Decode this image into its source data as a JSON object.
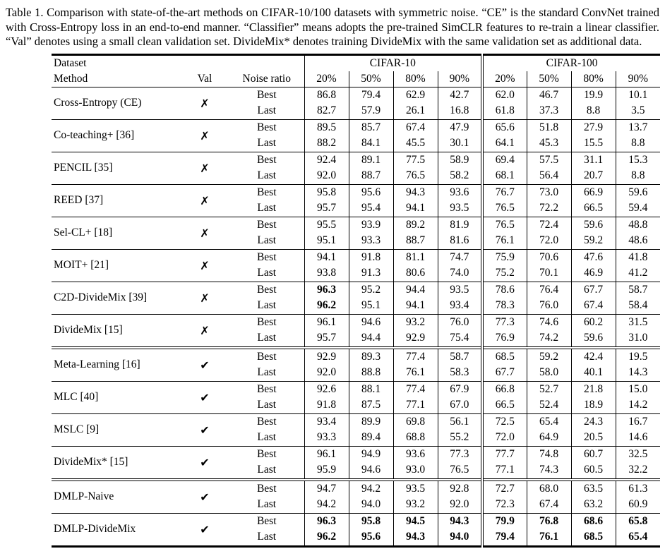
{
  "caption": "Table 1. Comparison with state-of-the-art methods on CIFAR-10/100 datasets with symmetric noise. “CE” is the standard ConvNet trained with Cross-Entropy loss in an end-to-end manner. “Classifier” means adopts the pre-trained SimCLR features to re-train a linear classifier. “Val” denotes using a small clean validation set. DivideMix* denotes training DivideMix with the same validation set as additional data.",
  "icons": {
    "check": "✔",
    "cross": "✗"
  },
  "table": {
    "header": {
      "dataset_label": "Dataset",
      "method_label": "Method",
      "val_label": "Val",
      "noise_ratio_label": "Noise ratio",
      "group1": "CIFAR-10",
      "group2": "CIFAR-100",
      "noise_levels": [
        "20%",
        "50%",
        "80%",
        "90%"
      ]
    },
    "row_labels": {
      "best": "Best",
      "last": "Last"
    },
    "rows": [
      {
        "method": "Cross-Entropy (CE)",
        "val": false,
        "section_start": false,
        "best": [
          "86.8",
          "79.4",
          "62.9",
          "42.7",
          "62.0",
          "46.7",
          "19.9",
          "10.1"
        ],
        "last": [
          "82.7",
          "57.9",
          "26.1",
          "16.8",
          "61.8",
          "37.3",
          "8.8",
          "3.5"
        ],
        "bold_best": [],
        "bold_last": []
      },
      {
        "method": "Co-teaching+ [36]",
        "val": false,
        "section_start": false,
        "best": [
          "89.5",
          "85.7",
          "67.4",
          "47.9",
          "65.6",
          "51.8",
          "27.9",
          "13.7"
        ],
        "last": [
          "88.2",
          "84.1",
          "45.5",
          "30.1",
          "64.1",
          "45.3",
          "15.5",
          "8.8"
        ],
        "bold_best": [],
        "bold_last": []
      },
      {
        "method": "PENCIL [35]",
        "val": false,
        "section_start": false,
        "best": [
          "92.4",
          "89.1",
          "77.5",
          "58.9",
          "69.4",
          "57.5",
          "31.1",
          "15.3"
        ],
        "last": [
          "92.0",
          "88.7",
          "76.5",
          "58.2",
          "68.1",
          "56.4",
          "20.7",
          "8.8"
        ],
        "bold_best": [],
        "bold_last": []
      },
      {
        "method": "REED [37]",
        "val": false,
        "section_start": false,
        "best": [
          "95.8",
          "95.6",
          "94.3",
          "93.6",
          "76.7",
          "73.0",
          "66.9",
          "59.6"
        ],
        "last": [
          "95.7",
          "95.4",
          "94.1",
          "93.5",
          "76.5",
          "72.2",
          "66.5",
          "59.4"
        ],
        "bold_best": [],
        "bold_last": []
      },
      {
        "method": "Sel-CL+ [18]",
        "val": false,
        "section_start": false,
        "best": [
          "95.5",
          "93.9",
          "89.2",
          "81.9",
          "76.5",
          "72.4",
          "59.6",
          "48.8"
        ],
        "last": [
          "95.1",
          "93.3",
          "88.7",
          "81.6",
          "76.1",
          "72.0",
          "59.2",
          "48.6"
        ],
        "bold_best": [],
        "bold_last": []
      },
      {
        "method": "MOIT+ [21]",
        "val": false,
        "section_start": false,
        "best": [
          "94.1",
          "91.8",
          "81.1",
          "74.7",
          "75.9",
          "70.6",
          "47.6",
          "41.8"
        ],
        "last": [
          "93.8",
          "91.3",
          "80.6",
          "74.0",
          "75.2",
          "70.1",
          "46.9",
          "41.2"
        ],
        "bold_best": [],
        "bold_last": []
      },
      {
        "method": "C2D-DivideMix [39]",
        "val": false,
        "section_start": false,
        "best": [
          "96.3",
          "95.2",
          "94.4",
          "93.5",
          "78.6",
          "76.4",
          "67.7",
          "58.7"
        ],
        "last": [
          "96.2",
          "95.1",
          "94.1",
          "93.4",
          "78.3",
          "76.0",
          "67.4",
          "58.4"
        ],
        "bold_best": [
          0
        ],
        "bold_last": [
          0
        ]
      },
      {
        "method": "DivideMix [15]",
        "val": false,
        "section_start": false,
        "best": [
          "96.1",
          "94.6",
          "93.2",
          "76.0",
          "77.3",
          "74.6",
          "60.2",
          "31.5"
        ],
        "last": [
          "95.7",
          "94.4",
          "92.9",
          "75.4",
          "76.9",
          "74.2",
          "59.6",
          "31.0"
        ],
        "bold_best": [],
        "bold_last": []
      },
      {
        "method": "Meta-Learning [16]",
        "val": true,
        "section_start": true,
        "best": [
          "92.9",
          "89.3",
          "77.4",
          "58.7",
          "68.5",
          "59.2",
          "42.4",
          "19.5"
        ],
        "last": [
          "92.0",
          "88.8",
          "76.1",
          "58.3",
          "67.7",
          "58.0",
          "40.1",
          "14.3"
        ],
        "bold_best": [],
        "bold_last": []
      },
      {
        "method": "MLC [40]",
        "val": true,
        "section_start": false,
        "best": [
          "92.6",
          "88.1",
          "77.4",
          "67.9",
          "66.8",
          "52.7",
          "21.8",
          "15.0"
        ],
        "last": [
          "91.8",
          "87.5",
          "77.1",
          "67.0",
          "66.5",
          "52.4",
          "18.9",
          "14.2"
        ],
        "bold_best": [],
        "bold_last": []
      },
      {
        "method": "MSLC [9]",
        "val": true,
        "section_start": false,
        "best": [
          "93.4",
          "89.9",
          "69.8",
          "56.1",
          "72.5",
          "65.4",
          "24.3",
          "16.7"
        ],
        "last": [
          "93.3",
          "89.4",
          "68.8",
          "55.2",
          "72.0",
          "64.9",
          "20.5",
          "14.6"
        ],
        "bold_best": [],
        "bold_last": []
      },
      {
        "method": "DivideMix* [15]",
        "val": true,
        "section_start": false,
        "best": [
          "96.1",
          "94.9",
          "93.6",
          "77.3",
          "77.7",
          "74.8",
          "60.7",
          "32.5"
        ],
        "last": [
          "95.9",
          "94.6",
          "93.0",
          "76.5",
          "77.1",
          "74.3",
          "60.5",
          "32.2"
        ],
        "bold_best": [],
        "bold_last": []
      },
      {
        "method": "DMLP-Naive",
        "val": true,
        "section_start": true,
        "best": [
          "94.7",
          "94.2",
          "93.5",
          "92.8",
          "72.7",
          "68.0",
          "63.5",
          "61.3"
        ],
        "last": [
          "94.2",
          "94.0",
          "93.2",
          "92.0",
          "72.3",
          "67.4",
          "63.2",
          "60.9"
        ],
        "bold_best": [],
        "bold_last": []
      },
      {
        "method": "DMLP-DivideMix",
        "val": true,
        "section_start": false,
        "best": [
          "96.3",
          "95.8",
          "94.5",
          "94.3",
          "79.9",
          "76.8",
          "68.6",
          "65.8"
        ],
        "last": [
          "96.2",
          "95.6",
          "94.3",
          "94.0",
          "79.4",
          "76.1",
          "68.5",
          "65.4"
        ],
        "bold_best": [
          0,
          1,
          2,
          3,
          4,
          5,
          6,
          7
        ],
        "bold_last": [
          0,
          1,
          2,
          3,
          4,
          5,
          6,
          7
        ]
      }
    ]
  }
}
